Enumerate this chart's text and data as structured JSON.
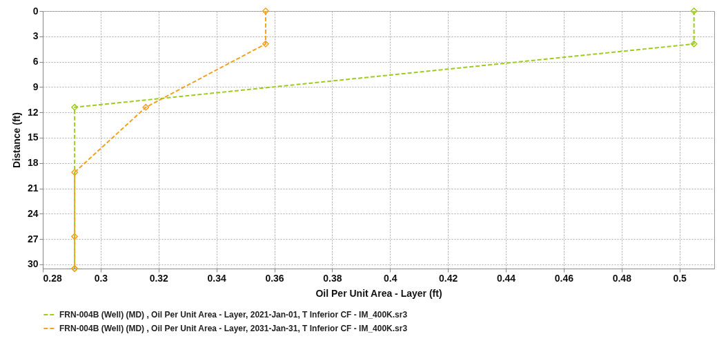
{
  "chart_data": {
    "type": "line",
    "xlabel": "Oil Per Unit Area - Layer (ft)",
    "ylabel": "Distance (ft)",
    "series": [
      {
        "name": "FRN-004B (Well) (MD) , Oil Per Unit Area - Layer, 2021-Jan-01, T Inferior CF - IM_400K.sr3",
        "color": "#9ccc1c",
        "x": [
          0.505,
          0.505,
          0.291,
          0.291
        ],
        "values": [
          0,
          3.9,
          11.4,
          30.5
        ]
      },
      {
        "name": "FRN-004B (Well) (MD) , Oil Per Unit Area - Layer, 2031-Jan-31, T Inferior CF - IM_400K.sr3",
        "color": "#f5a01e",
        "x": [
          0.357,
          0.357,
          0.3156,
          0.291,
          0.291,
          0.291
        ],
        "values": [
          0,
          3.9,
          11.4,
          19.1,
          26.7,
          30.5
        ]
      }
    ],
    "xlim": [
      0.28,
      0.512
    ],
    "xticks": [
      0.28,
      0.3,
      0.32,
      0.34,
      0.36,
      0.38,
      0.4,
      0.42,
      0.44,
      0.46,
      0.48,
      0.5
    ],
    "ylim": [
      30.5,
      0
    ],
    "yticks": [
      0,
      3,
      6,
      9,
      12,
      15,
      18,
      21,
      24,
      27,
      30
    ],
    "grid": true,
    "legend": "bottom",
    "marker": "diamond",
    "line_style": "dashed"
  }
}
